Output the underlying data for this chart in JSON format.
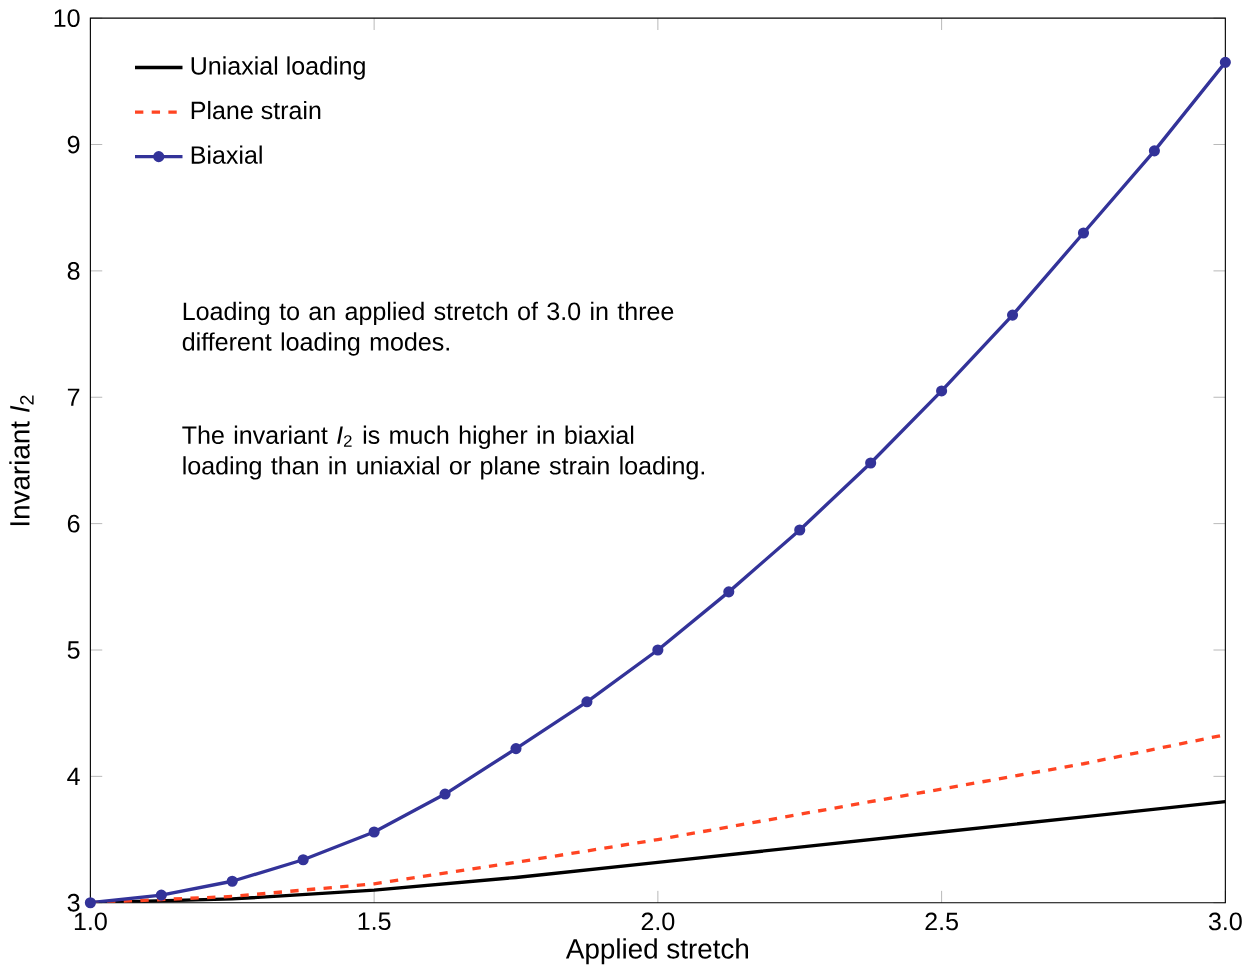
{
  "chart_data": {
    "type": "line",
    "xlabel": "Applied stretch",
    "ylabel": "Invariant *I*$_{2}$",
    "xlim": [
      1,
      3
    ],
    "ylim": [
      3,
      10
    ],
    "xticks": [
      {
        "value": 1,
        "label": "1.0"
      },
      {
        "value": 1.5,
        "label": "1.5"
      },
      {
        "value": 2,
        "label": "2.0"
      },
      {
        "value": 2.5,
        "label": "2.5"
      },
      {
        "value": 3,
        "label": "3.0"
      }
    ],
    "yticks": [
      3,
      4,
      5,
      6,
      7,
      8,
      9,
      10
    ],
    "grid": false,
    "legend": "top left",
    "series": [
      {
        "name": "Uniaxial loading",
        "color": "#000000",
        "line_style": "solid",
        "marker": "none",
        "x": [
          1,
          1.25,
          1.5,
          1.75,
          2,
          2.25,
          2.5,
          2.75,
          3
        ],
        "values": [
          3,
          3.03,
          3.1,
          3.2,
          3.32,
          3.44,
          3.56,
          3.68,
          3.8
        ]
      },
      {
        "name": "Plane strain",
        "color": "#ff4422",
        "line_style": "dashed",
        "marker": "none",
        "x": [
          1,
          1.25,
          1.5,
          1.75,
          2,
          2.25,
          2.5,
          2.75,
          3
        ],
        "values": [
          3,
          3.05,
          3.15,
          3.32,
          3.5,
          3.7,
          3.9,
          4.1,
          4.33
        ]
      },
      {
        "name": "Biaxial",
        "color": "#333399",
        "line_style": "solid",
        "marker": "circle",
        "x": [
          1,
          1.125,
          1.25,
          1.375,
          1.5,
          1.625,
          1.75,
          1.875,
          2,
          2.125,
          2.25,
          2.375,
          2.5,
          2.625,
          2.75,
          2.875,
          3
        ],
        "values": [
          3,
          3.06,
          3.17,
          3.34,
          3.56,
          3.86,
          4.22,
          4.59,
          5.0,
          5.46,
          5.95,
          6.48,
          7.05,
          7.65,
          8.3,
          8.95,
          9.65
        ]
      }
    ],
    "annotations": [
      "Loading to an applied stretch of 3.0 in three different loading modes.",
      "The invariant *I*$_{2}$ is much higher in biaxial loading than in uniaxial or plane strain loading."
    ]
  }
}
